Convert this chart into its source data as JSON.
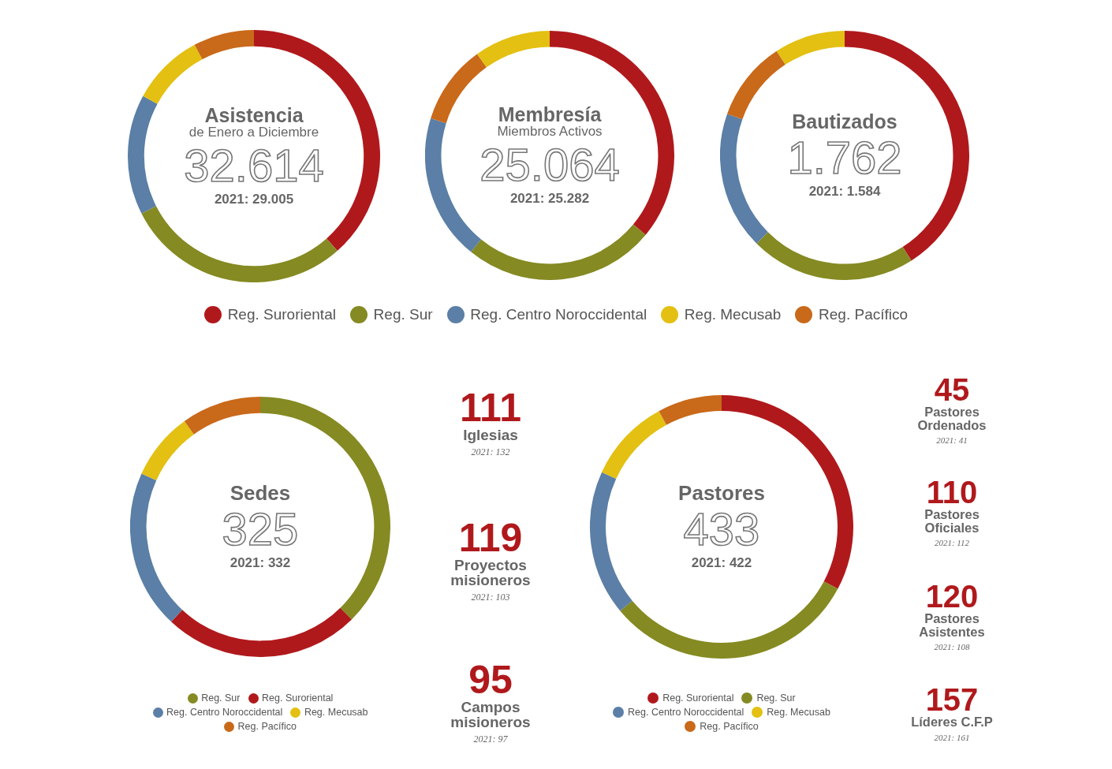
{
  "chart_data": [
    {
      "type": "donut",
      "title": "Asistencia",
      "subtitle": "de Enero a Diciembre",
      "annotations": [
        "32.614",
        "2021: 29.005"
      ],
      "categories": [
        "Reg. Suroriental",
        "Reg. Sur",
        "Reg. Centro Noroccidental",
        "Reg. Mecusab",
        "Reg. Pacífico"
      ],
      "values": [
        38.5,
        29,
        15.4,
        9.3,
        7.8
      ],
      "colors": [
        "#b0191c",
        "#858a22",
        "#5b7fa6",
        "#e3c012",
        "#c9691a"
      ],
      "legend": "bottom"
    },
    {
      "type": "donut",
      "title": "Membresía",
      "subtitle": "Miembros Activos",
      "annotations": [
        "25.064",
        "2021: 25.282"
      ],
      "categories": [
        null,
        null,
        null,
        null,
        null
      ],
      "values": [
        36,
        24.9,
        18.9,
        10.3,
        9.9
      ],
      "colors": [
        "#b0191c",
        "#858a22",
        "#5b7fa6",
        "#c9691a",
        "#e3c012"
      ]
    },
    {
      "type": "donut",
      "title": "Bautizados",
      "annotations": [
        "1.762",
        "2021: 1.584"
      ],
      "categories": [
        null,
        null,
        null,
        null,
        null
      ],
      "values": [
        41,
        21.5,
        17.9,
        10.4,
        9.2
      ],
      "colors": [
        "#b0191c",
        "#858a22",
        "#5b7fa6",
        "#c9691a",
        "#e3c012"
      ]
    },
    {
      "type": "donut",
      "title": "Sedes",
      "annotations": [
        "325",
        "2021: 332"
      ],
      "categories": [
        "Reg. Sur",
        "Reg. Suroriental",
        "Reg. Centro Noroccidental",
        "Reg. Mecusab",
        "Reg. Pacífico"
      ],
      "values": [
        37.6,
        24.4,
        19.7,
        8.4,
        9.9
      ],
      "colors": [
        "#858a22",
        "#b0191c",
        "#5b7fa6",
        "#e3c012",
        "#c9691a"
      ],
      "legend": "bottom"
    },
    {
      "type": "donut",
      "title": "Pastores",
      "annotations": [
        "433",
        "2021: 422"
      ],
      "categories": [
        "Reg. Suroriental",
        "Reg. Sur",
        "Reg. Centro Noroccidental",
        "Reg. Mecusab",
        "Reg. Pacífico"
      ],
      "values": [
        32.8,
        31.2,
        17.8,
        10.3,
        7.9
      ],
      "colors": [
        "#b0191c",
        "#858a22",
        "#5b7fa6",
        "#e3c012",
        "#c9691a"
      ],
      "legend": "bottom"
    },
    {
      "type": "other",
      "annotations": [
        "111",
        "Iglesias",
        "2021: 132"
      ]
    },
    {
      "type": "other",
      "annotations": [
        "119",
        "Proyectos misioneros",
        "2021: 103"
      ]
    },
    {
      "type": "other",
      "annotations": [
        "95",
        "Campos misioneros",
        "2021: 97"
      ]
    },
    {
      "type": "other",
      "annotations": [
        "45",
        "Pastores Ordenados",
        "2021: 41"
      ]
    },
    {
      "type": "other",
      "annotations": [
        "110",
        "Pastores Oficiales",
        "2021: 112"
      ]
    },
    {
      "type": "other",
      "annotations": [
        "120",
        "Pastores Asistentes",
        "2021: 108"
      ]
    },
    {
      "type": "other",
      "annotations": [
        "157",
        "Líderes C.F.P",
        "2021: 161"
      ]
    }
  ]
}
